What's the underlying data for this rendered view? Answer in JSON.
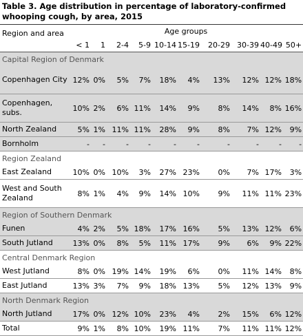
{
  "title": "Table 3. Age distribution in percentage of laboratory-confirmed whooping cough, by area, 2015",
  "header": {
    "region_area": "Region and area",
    "age_groups": "Age groups",
    "age_cols": [
      "< 1",
      "1",
      "2-4",
      "5-9",
      "10-14",
      "15-19",
      "20-29",
      "30-39",
      "40-49",
      "50+"
    ]
  },
  "rows": [
    {
      "type": "region",
      "label": "Capital Region of Denmark"
    },
    {
      "type": "area",
      "name": "Copenhagen City",
      "values": [
        "12%",
        "0%",
        "5%",
        "7%",
        "18%",
        "4%",
        "13%",
        "12%",
        "12%",
        "18%"
      ]
    },
    {
      "type": "area",
      "name": "Copenhagen, subs.",
      "values": [
        "10%",
        "2%",
        "6%",
        "11%",
        "14%",
        "9%",
        "8%",
        "14%",
        "8%",
        "16%"
      ]
    },
    {
      "type": "area",
      "name": "North Zealand",
      "values": [
        "5%",
        "1%",
        "11%",
        "11%",
        "28%",
        "9%",
        "8%",
        "7%",
        "12%",
        "9%"
      ]
    },
    {
      "type": "area",
      "name": "Bornholm",
      "values": [
        "-",
        "-",
        "-",
        "-",
        "-",
        "-",
        "-",
        "-",
        "-",
        "-"
      ]
    },
    {
      "type": "region",
      "label": "Region Zealand"
    },
    {
      "type": "area",
      "name": "East Zealand",
      "values": [
        "10%",
        "0%",
        "10%",
        "3%",
        "27%",
        "23%",
        "0%",
        "7%",
        "17%",
        "3%"
      ]
    },
    {
      "type": "area",
      "name": "West and South Zealand",
      "values": [
        "8%",
        "1%",
        "4%",
        "9%",
        "14%",
        "10%",
        "9%",
        "11%",
        "11%",
        "23%"
      ]
    },
    {
      "type": "region",
      "label": "Region of Southern Denmark"
    },
    {
      "type": "area",
      "name": "Funen",
      "values": [
        "4%",
        "2%",
        "5%",
        "18%",
        "17%",
        "16%",
        "5%",
        "13%",
        "12%",
        "6%"
      ]
    },
    {
      "type": "area",
      "name": "South Jutland",
      "values": [
        "13%",
        "0%",
        "8%",
        "5%",
        "11%",
        "17%",
        "9%",
        "6%",
        "9%",
        "22%"
      ]
    },
    {
      "type": "region",
      "label": "Central Denmark Region"
    },
    {
      "type": "area",
      "name": "West Jutland",
      "values": [
        "8%",
        "0%",
        "19%",
        "14%",
        "19%",
        "6%",
        "0%",
        "11%",
        "14%",
        "8%"
      ]
    },
    {
      "type": "area",
      "name": "East Jutland",
      "values": [
        "13%",
        "3%",
        "7%",
        "9%",
        "18%",
        "13%",
        "5%",
        "12%",
        "13%",
        "9%"
      ]
    },
    {
      "type": "region",
      "label": "North Denmark Region"
    },
    {
      "type": "area",
      "name": "North Jutland",
      "values": [
        "17%",
        "0%",
        "12%",
        "10%",
        "23%",
        "4%",
        "2%",
        "15%",
        "6%",
        "12%"
      ]
    },
    {
      "type": "total",
      "name": "Total",
      "values": [
        "9%",
        "1%",
        "8%",
        "10%",
        "19%",
        "11%",
        "7%",
        "11%",
        "11%",
        "12%"
      ]
    }
  ]
}
